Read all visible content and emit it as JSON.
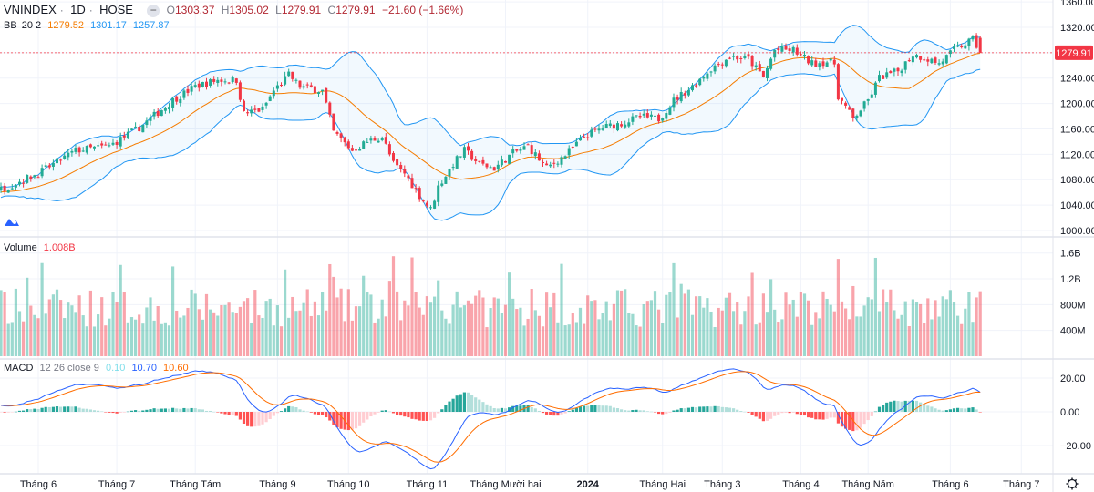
{
  "header": {
    "symbol": "VNINDEX",
    "interval": "1D",
    "exchange": "HOSE",
    "o_label": "O",
    "o_value": "1303.37",
    "h_label": "H",
    "h_value": "1305.02",
    "l_label": "L",
    "l_value": "1279.91",
    "c_label": "C",
    "c_value": "1279.91",
    "change": "−21.60 (−1.66%)"
  },
  "bb_legend": {
    "name": "BB",
    "params": "20 2",
    "basis": "1279.52",
    "upper": "1301.17",
    "lower": "1257.87"
  },
  "volume_legend": {
    "name": "Volume",
    "value": "1.008B"
  },
  "macd_legend": {
    "name": "MACD",
    "params": "12 26 close 9",
    "hist": "0.10",
    "macd": "10.70",
    "signal": "10.60"
  },
  "colors": {
    "up": "#22ab94",
    "down": "#f23645",
    "bb_basis": "#f57c00",
    "bb_band": "#2196f3",
    "macd": "#2962ff",
    "signal": "#ff6d00"
  },
  "chart_data": {
    "type": "candlestick",
    "title": "VNINDEX 1D HOSE",
    "last_price": 1279.91,
    "last_price_label": "1279.91",
    "price_axis": {
      "ylim": [
        1000,
        1360
      ],
      "ticks": [
        "1360.00",
        "1320.00",
        "1280.00",
        "1240.00",
        "1200.00",
        "1160.00",
        "1120.00",
        "1080.00",
        "1040.00",
        "1000.00"
      ],
      "tick_values": [
        1360,
        1320,
        1280,
        1240,
        1200,
        1160,
        1120,
        1080,
        1040,
        1000
      ]
    },
    "volume_axis": {
      "ylim": [
        0,
        2.0
      ],
      "unit": "B",
      "ticks": [
        "1.6B",
        "1.2B",
        "800M",
        "400M"
      ],
      "tick_values": [
        1.6,
        1.2,
        0.8,
        0.4
      ]
    },
    "macd_axis": {
      "ylim": [
        -38,
        28
      ],
      "ticks": [
        "20.00",
        "0.00",
        "−20.00"
      ],
      "tick_values": [
        20,
        0,
        -20
      ]
    },
    "time_axis": {
      "labels": [
        {
          "bar": 10,
          "text": "Tháng 6"
        },
        {
          "bar": 31,
          "text": "Tháng 7"
        },
        {
          "bar": 52,
          "text": "Tháng Tám"
        },
        {
          "bar": 74,
          "text": "Tháng 9"
        },
        {
          "bar": 93,
          "text": "Tháng 10"
        },
        {
          "bar": 114,
          "text": "Tháng 11"
        },
        {
          "bar": 135,
          "text": "Tháng Mười hai"
        },
        {
          "bar": 157,
          "text": "2024",
          "bold": true
        },
        {
          "bar": 177,
          "text": "Tháng Hai"
        },
        {
          "bar": 193,
          "text": "Tháng 3"
        },
        {
          "bar": 214,
          "text": "Tháng 4"
        },
        {
          "bar": 232,
          "text": "Tháng Năm"
        },
        {
          "bar": 254,
          "text": "Tháng 6"
        },
        {
          "bar": 273,
          "text": "Tháng 7"
        }
      ]
    },
    "bars_visible": 263,
    "close_waypoints": [
      [
        -40,
        1040
      ],
      [
        -20,
        1055
      ],
      [
        0,
        1065
      ],
      [
        10,
        1090
      ],
      [
        20,
        1126
      ],
      [
        29,
        1133
      ],
      [
        37,
        1162
      ],
      [
        46,
        1205
      ],
      [
        52,
        1227
      ],
      [
        58,
        1237
      ],
      [
        63,
        1237
      ],
      [
        65,
        1184
      ],
      [
        70,
        1191
      ],
      [
        73,
        1220
      ],
      [
        77,
        1245
      ],
      [
        80,
        1227
      ],
      [
        86,
        1220
      ],
      [
        89,
        1155
      ],
      [
        94,
        1126
      ],
      [
        98,
        1140
      ],
      [
        102,
        1148
      ],
      [
        105,
        1105
      ],
      [
        108,
        1090
      ],
      [
        112,
        1055
      ],
      [
        115,
        1033
      ],
      [
        117,
        1069
      ],
      [
        121,
        1105
      ],
      [
        124,
        1126
      ],
      [
        128,
        1105
      ],
      [
        132,
        1098
      ],
      [
        137,
        1122
      ],
      [
        141,
        1133
      ],
      [
        146,
        1098
      ],
      [
        151,
        1119
      ],
      [
        156,
        1148
      ],
      [
        161,
        1162
      ],
      [
        166,
        1169
      ],
      [
        171,
        1179
      ],
      [
        176,
        1176
      ],
      [
        180,
        1205
      ],
      [
        185,
        1227
      ],
      [
        190,
        1255
      ],
      [
        195,
        1274
      ],
      [
        200,
        1270
      ],
      [
        204,
        1241
      ],
      [
        207,
        1284
      ],
      [
        212,
        1284
      ],
      [
        217,
        1263
      ],
      [
        221,
        1266
      ],
      [
        223,
        1263
      ],
      [
        224,
        1212
      ],
      [
        228,
        1176
      ],
      [
        232,
        1205
      ],
      [
        235,
        1241
      ],
      [
        240,
        1251
      ],
      [
        244,
        1277
      ],
      [
        248,
        1270
      ],
      [
        251,
        1263
      ],
      [
        255,
        1284
      ],
      [
        260,
        1301
      ],
      [
        262,
        1279.91
      ]
    ],
    "volume_base_B": 0.75
  }
}
